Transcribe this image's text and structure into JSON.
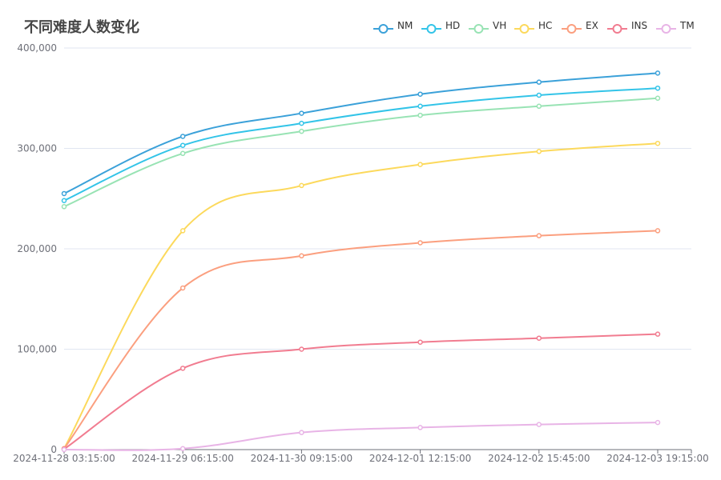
{
  "chart_data": {
    "type": "line",
    "title": "不同难度人数变化",
    "xlabel": "",
    "ylabel": "",
    "ylim": [
      0,
      400000
    ],
    "y_ticks": [
      0,
      100000,
      200000,
      300000,
      400000
    ],
    "y_tick_labels": [
      "0",
      "100,000",
      "200,000",
      "300,000",
      "400,000"
    ],
    "x": [
      "2024-11-28 03:15:00",
      "2024-11-29 06:15:00",
      "2024-11-30 09:15:00",
      "2024-12-01 12:15:00",
      "2024-12-02 15:45:00",
      "2024-12-03 19:15:00"
    ],
    "x_tick_labels": [
      "2024-11-28 03:15:00",
      "2024-11-29 06:15:00",
      "2024-11-30 09:15:00",
      "2024-12-01 12:15:00",
      "2024-12-02 15:45:00",
      "2024-12-03 19:15:00"
    ],
    "grid": true,
    "legend_position": "top-right",
    "series": [
      {
        "name": "NM",
        "color": "#3ba1d9",
        "values": [
          255000,
          312000,
          335000,
          354000,
          366000,
          375000
        ]
      },
      {
        "name": "HD",
        "color": "#33c4e8",
        "values": [
          248000,
          303000,
          325000,
          342000,
          353000,
          360000
        ]
      },
      {
        "name": "VH",
        "color": "#98e3b4",
        "values": [
          242000,
          295000,
          317000,
          333000,
          342000,
          350000
        ]
      },
      {
        "name": "HC",
        "color": "#fcd95c",
        "values": [
          1000,
          218000,
          263000,
          284000,
          297000,
          305000
        ]
      },
      {
        "name": "EX",
        "color": "#fb9f7f",
        "values": [
          1000,
          161000,
          193000,
          206000,
          213000,
          218000
        ]
      },
      {
        "name": "INS",
        "color": "#f17c90",
        "values": [
          500,
          81000,
          100000,
          107000,
          111000,
          115000
        ]
      },
      {
        "name": "TM",
        "color": "#e8b4e6",
        "values": [
          0,
          1000,
          17000,
          22000,
          25000,
          27000
        ]
      }
    ]
  }
}
